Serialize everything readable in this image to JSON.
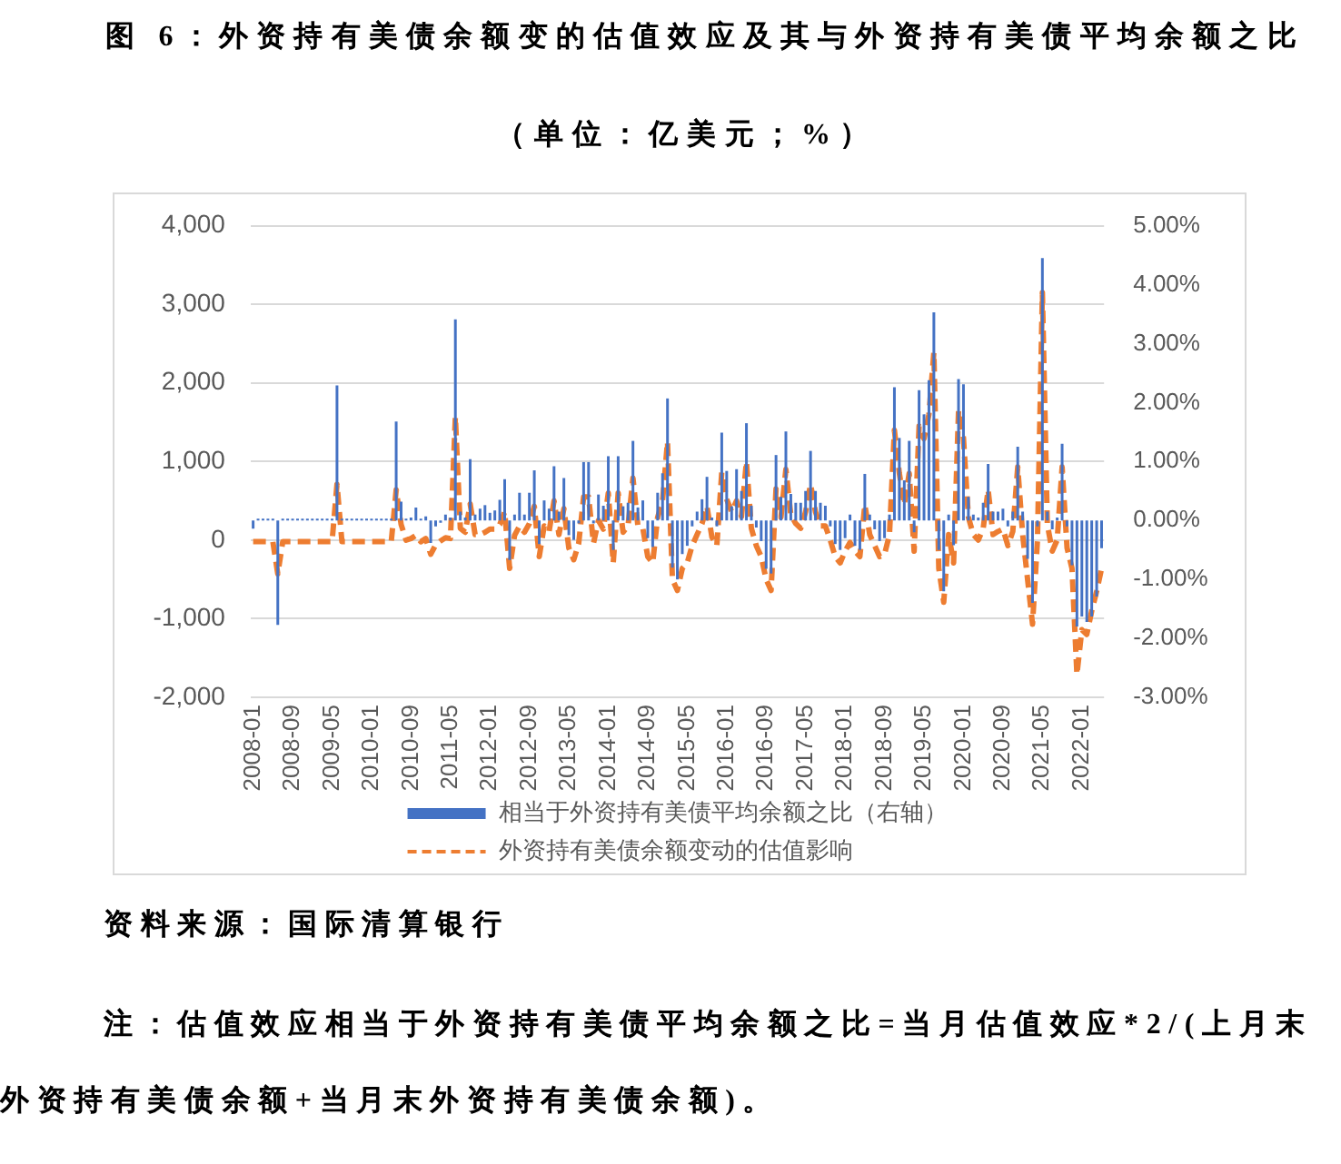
{
  "chart_data": {
    "type": "bar",
    "title": "图 6：外资持有美债余额变的估值效应及其与外资持有美债平均余额之比",
    "subtitle": "（单位：亿美元；%）",
    "categories": [
      "2008-01",
      null,
      null,
      null,
      null,
      null,
      null,
      null,
      "2008-09",
      null,
      null,
      null,
      null,
      null,
      null,
      null,
      "2009-05",
      null,
      null,
      null,
      null,
      null,
      null,
      null,
      "2010-01",
      null,
      null,
      null,
      null,
      null,
      null,
      null,
      "2010-09",
      null,
      null,
      null,
      null,
      null,
      null,
      null,
      "2011-05",
      null,
      null,
      null,
      null,
      null,
      null,
      null,
      "2012-01",
      null,
      null,
      null,
      null,
      null,
      null,
      null,
      "2012-09",
      null,
      null,
      null,
      null,
      null,
      null,
      null,
      "2013-05",
      null,
      null,
      null,
      null,
      null,
      null,
      null,
      "2014-01",
      null,
      null,
      null,
      null,
      null,
      null,
      null,
      "2014-09",
      null,
      null,
      null,
      null,
      null,
      null,
      null,
      "2015-05",
      null,
      null,
      null,
      null,
      null,
      null,
      null,
      "2016-01",
      null,
      null,
      null,
      null,
      null,
      null,
      null,
      "2016-09",
      null,
      null,
      null,
      null,
      null,
      null,
      null,
      "2017-05",
      null,
      null,
      null,
      null,
      null,
      null,
      null,
      "2018-01",
      null,
      null,
      null,
      null,
      null,
      null,
      null,
      "2018-09",
      null,
      null,
      null,
      null,
      null,
      null,
      null,
      "2019-05",
      null,
      null,
      null,
      null,
      null,
      null,
      null,
      "2020-01",
      null,
      null,
      null,
      null,
      null,
      null,
      null,
      "2020-09",
      null,
      null,
      null,
      null,
      null,
      null,
      null,
      "2021-05",
      null,
      null,
      null,
      null,
      null,
      null,
      null,
      "2022-01",
      null,
      null,
      null,
      null
    ],
    "series": [
      {
        "name": "相当于外资持有美债平均余额之比（右轴）",
        "color": "#4472c4",
        "axis": "y2",
        "values": [
          -0.14,
          0.03,
          0.03,
          0.03,
          0.03,
          -1.77,
          0.03,
          0.03,
          0.03,
          0.03,
          0.03,
          0.03,
          0.03,
          0.03,
          0.03,
          0.03,
          0.03,
          2.29,
          0.03,
          0.03,
          0.03,
          0.03,
          0.03,
          0.03,
          0.03,
          0.03,
          0.03,
          0.03,
          0.03,
          1.68,
          0.32,
          0.03,
          0.05,
          0.22,
          0.03,
          0.07,
          -0.38,
          -0.1,
          -0.04,
          0.1,
          0.05,
          3.41,
          0.15,
          0.05,
          1.04,
          0.1,
          0.2,
          0.26,
          0.13,
          0.17,
          0.35,
          0.7,
          -0.67,
          0.1,
          0.47,
          0.1,
          0.47,
          0.85,
          -0.4,
          0.34,
          0.2,
          0.92,
          0.15,
          0.72,
          -0.25,
          -0.33,
          -0.05,
          0.99,
          0.99,
          -0.05,
          0.44,
          0.25,
          1.09,
          -0.5,
          1.09,
          0.24,
          0.3,
          1.35,
          0.22,
          0.34,
          -0.3,
          -0.45,
          0.47,
          0.8,
          2.07,
          -0.8,
          -1.0,
          -0.57,
          -0.43,
          -0.1,
          0.15,
          0.36,
          0.74,
          0.05,
          -0.1,
          1.49,
          0.84,
          0.24,
          0.87,
          0.5,
          1.65,
          0.25,
          -0.12,
          -0.35,
          -0.82,
          -0.9,
          1.11,
          0.4,
          1.51,
          0.45,
          0.3,
          0.3,
          0.5,
          1.18,
          0.5,
          0.3,
          0.25,
          -0.1,
          -0.4,
          -0.5,
          -0.3,
          0.1,
          -0.43,
          -0.5,
          0.79,
          0.1,
          -0.15,
          -0.35,
          -0.3,
          0.1,
          2.26,
          1.4,
          0.68,
          1.35,
          -0.2,
          2.21,
          1.8,
          2.38,
          3.53,
          -0.5,
          -1.2,
          0.1,
          -0.42,
          2.4,
          2.31,
          0.4,
          0.1,
          0.05,
          0.3,
          0.96,
          0.15,
          0.15,
          0.2,
          -0.1,
          0.15,
          1.25,
          0.15,
          -0.65,
          -1.4,
          -0.1,
          4.45,
          0.15,
          -0.15,
          0.05,
          1.3,
          -0.1,
          -0.76,
          -1.8,
          -1.63,
          -1.72,
          -1.63,
          -1.29,
          -0.47
        ]
      },
      {
        "name": "外资持有美债余额变动的估值影响",
        "type": "line",
        "color": "#ed7d31",
        "line_style": "dashed",
        "values": [
          -20,
          -20,
          -20,
          -20,
          -20,
          -430,
          -20,
          -20,
          -20,
          -20,
          -20,
          -20,
          -20,
          -20,
          -20,
          -20,
          -20,
          710,
          -20,
          -20,
          -20,
          -20,
          -20,
          -20,
          -20,
          -20,
          -20,
          -20,
          -20,
          640,
          200,
          0,
          20,
          60,
          -20,
          20,
          -180,
          -60,
          -10,
          30,
          20,
          1570,
          150,
          100,
          460,
          70,
          70,
          100,
          140,
          140,
          200,
          360,
          -360,
          60,
          180,
          100,
          210,
          430,
          -210,
          180,
          110,
          500,
          70,
          400,
          -100,
          -250,
          -40,
          550,
          550,
          -40,
          250,
          140,
          600,
          -290,
          600,
          100,
          180,
          790,
          180,
          150,
          -210,
          -290,
          290,
          500,
          1250,
          -500,
          -640,
          -360,
          -290,
          -70,
          70,
          210,
          430,
          40,
          -70,
          860,
          520,
          360,
          500,
          300,
          1000,
          150,
          -70,
          -210,
          -500,
          -640,
          650,
          290,
          900,
          320,
          210,
          150,
          360,
          710,
          360,
          180,
          180,
          0,
          -210,
          -290,
          -140,
          -30,
          -140,
          -210,
          450,
          70,
          -70,
          -210,
          -180,
          70,
          1400,
          850,
          450,
          850,
          -140,
          1450,
          1290,
          1600,
          2390,
          -360,
          -790,
          70,
          -290,
          1650,
          1300,
          290,
          70,
          0,
          150,
          640,
          70,
          110,
          140,
          -70,
          110,
          930,
          70,
          -500,
          -1070,
          0,
          3150,
          200,
          -140,
          0,
          930,
          -100,
          -360,
          -1710,
          -1140,
          -1200,
          -900,
          -650,
          -360
        ]
      }
    ],
    "ylim": [
      -2000,
      4000
    ],
    "yticks": [
      {
        "value": -2000,
        "label": "-2,000"
      },
      {
        "value": -1000,
        "label": "-1,000"
      },
      0,
      {
        "value": 1000,
        "label": "1,000"
      },
      {
        "value": 2000,
        "label": "2,000"
      },
      {
        "value": 3000,
        "label": "3,000"
      },
      {
        "value": 4000,
        "label": "4,000"
      }
    ],
    "y2lim": [
      -3,
      5
    ],
    "y2ticks": [
      {
        "value": -3,
        "label": "-3.00%"
      },
      {
        "value": -2,
        "label": "-2.00%"
      },
      {
        "value": -1,
        "label": "-1.00%"
      },
      {
        "value": 0,
        "label": "0.00%"
      },
      {
        "value": 1,
        "label": "1.00%"
      },
      {
        "value": 2,
        "label": "2.00%"
      },
      {
        "value": 3,
        "label": "3.00%"
      },
      {
        "value": 4,
        "label": "4.00%"
      },
      {
        "value": 5,
        "label": "5.00%"
      }
    ],
    "grid": "y",
    "legend": "bottom",
    "annotations": [
      "资料来源：国际清算银行",
      "注：估值效应相当于外资持有美债平均余额之比=当月估值效应*2/(上月末外资持有美债余额+当月末外资持有美债余额)。"
    ]
  }
}
